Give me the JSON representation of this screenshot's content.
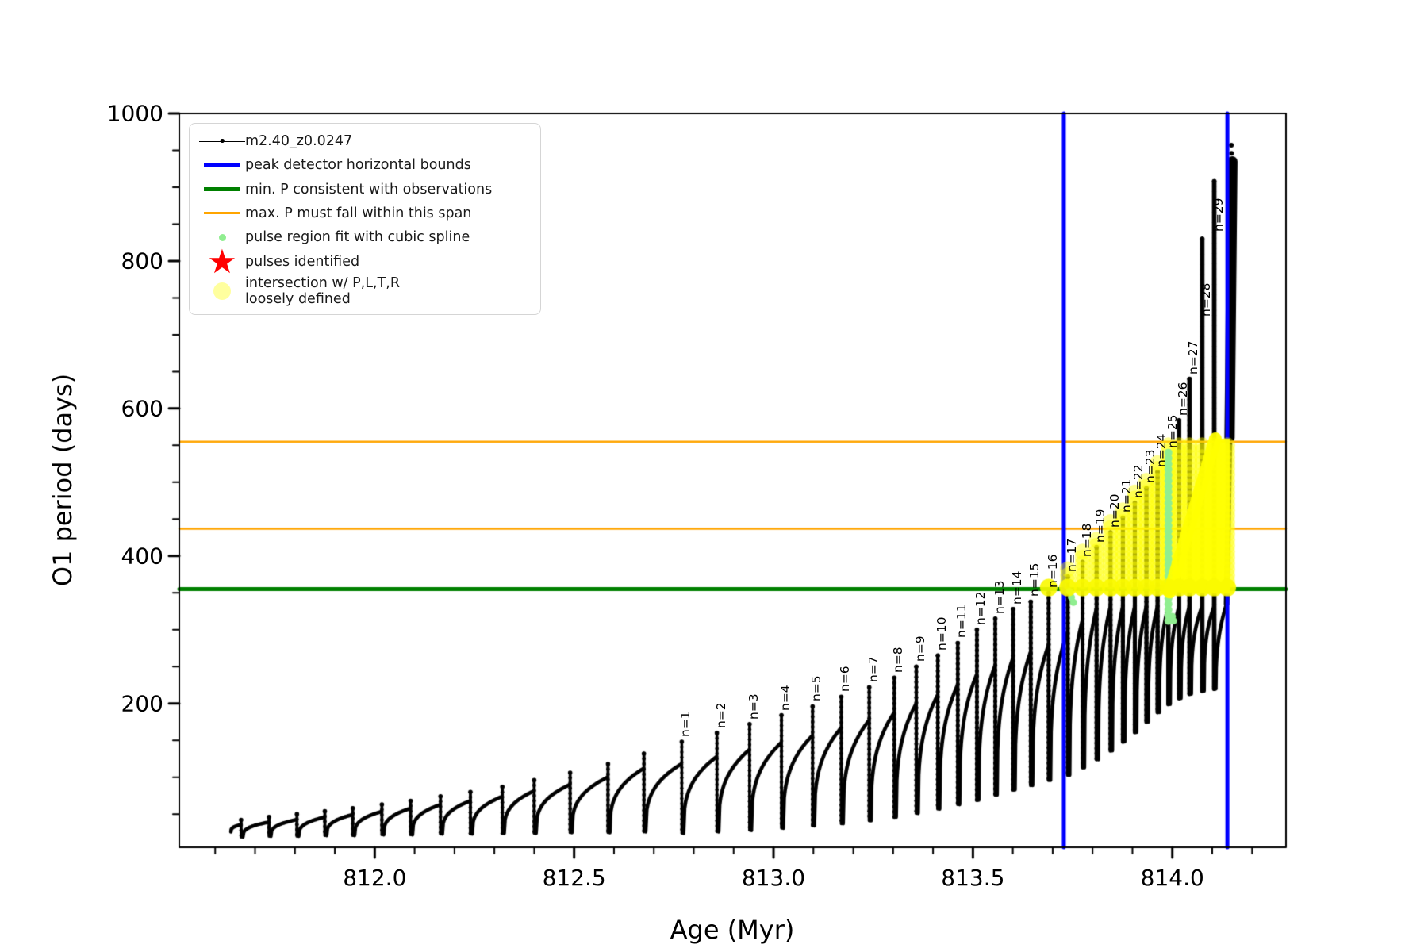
{
  "figure": {
    "type": "matplotlib-style scientific plot",
    "background": "#ffffff"
  },
  "legend": {
    "position": "upper-left",
    "items": [
      {
        "id": "track",
        "label": "m2.40_z0.0247",
        "marker": "line-with-dot",
        "color": "#000000"
      },
      {
        "id": "peak-bounds",
        "label": "peak detector horizontal bounds",
        "marker": "thick-line",
        "color": "#0000ff"
      },
      {
        "id": "min-p",
        "label": "min. P consistent with observations",
        "marker": "thick-line",
        "color": "#008000"
      },
      {
        "id": "max-p",
        "label": "max. P must fall within this span",
        "marker": "line",
        "color": "#ffa500"
      },
      {
        "id": "spline",
        "label": "pulse region fit with cubic spline",
        "marker": "small-dot",
        "color": "#90ee90"
      },
      {
        "id": "pulses",
        "label": "pulses identified",
        "marker": "star",
        "glyph": "★",
        "color": "#ff0000"
      },
      {
        "id": "intersection",
        "label": "intersection w/ P,L,T,R\nloosely defined",
        "marker": "big-dot",
        "color": "rgba(255,255,0,0.38)"
      }
    ]
  },
  "chart_data": {
    "type": "line",
    "title": "",
    "xlabel": "Age (Myr)",
    "ylabel": "O1 period (days)",
    "xlim": [
      811.51,
      814.285
    ],
    "ylim": [
      5,
      1000
    ],
    "xticks": [
      {
        "v": 812.0,
        "label": "812.0"
      },
      {
        "v": 812.5,
        "label": "812.5"
      },
      {
        "v": 813.0,
        "label": "813.0"
      },
      {
        "v": 813.5,
        "label": "813.5"
      },
      {
        "v": 814.0,
        "label": "814.0"
      }
    ],
    "yticks": [
      {
        "v": 200,
        "label": "200"
      },
      {
        "v": 400,
        "label": "400"
      },
      {
        "v": 600,
        "label": "600"
      },
      {
        "v": 800,
        "label": "800"
      },
      {
        "v": 1000,
        "label": "1000"
      }
    ],
    "minor_x_step": 0.1,
    "minor_y_step": 50,
    "grid": false,
    "colors": {
      "track": "#000000",
      "peak_bounds": "#0000ff",
      "min_p": "#008000",
      "max_p": "#ffa500",
      "spline": "#90ee90",
      "pulses_star": "#ff0000",
      "intersection": "#ffff00"
    },
    "hlines": [
      {
        "value": 355,
        "color": "#008000",
        "width": 5,
        "meaning": "min. P consistent with observations"
      },
      {
        "value": 437,
        "color": "#ffa500",
        "width": 2.5,
        "meaning": "max. P span lower edge"
      },
      {
        "value": 555,
        "color": "#ffa500",
        "width": 2.5,
        "meaning": "max. P span upper edge"
      }
    ],
    "vlines": [
      {
        "value": 813.728,
        "color": "#0000ff",
        "width": 5,
        "meaning": "peak detector left bound"
      },
      {
        "value": 814.138,
        "color": "#0000ff",
        "width": 5,
        "meaning": "peak detector right bound"
      }
    ],
    "track_start": {
      "age": 811.635,
      "value": 26
    },
    "pre_pulses": [
      {
        "age": 811.665,
        "peak": 42,
        "base": 19
      },
      {
        "age": 811.735,
        "peak": 46,
        "base": 20
      },
      {
        "age": 811.805,
        "peak": 50,
        "base": 20
      },
      {
        "age": 811.875,
        "peak": 54,
        "base": 21
      },
      {
        "age": 811.945,
        "peak": 58,
        "base": 21
      },
      {
        "age": 812.018,
        "peak": 63,
        "base": 22
      },
      {
        "age": 812.09,
        "peak": 68,
        "base": 22
      },
      {
        "age": 812.165,
        "peak": 74,
        "base": 23
      },
      {
        "age": 812.24,
        "peak": 80,
        "base": 23
      },
      {
        "age": 812.32,
        "peak": 87,
        "base": 24
      },
      {
        "age": 812.4,
        "peak": 96,
        "base": 24
      },
      {
        "age": 812.49,
        "peak": 106,
        "base": 25
      },
      {
        "age": 812.585,
        "peak": 118,
        "base": 25
      },
      {
        "age": 812.675,
        "peak": 132,
        "base": 26
      }
    ],
    "pulses": [
      {
        "n": 1,
        "label": "n=1",
        "age": 812.77,
        "peak": 148,
        "base": 24
      },
      {
        "n": 2,
        "label": "n=2",
        "age": 812.858,
        "peak": 160,
        "base": 26
      },
      {
        "n": 3,
        "label": "n=3",
        "age": 812.94,
        "peak": 172,
        "base": 28
      },
      {
        "n": 4,
        "label": "n=4",
        "age": 813.02,
        "peak": 184,
        "base": 31
      },
      {
        "n": 5,
        "label": "n=5",
        "age": 813.098,
        "peak": 196,
        "base": 34
      },
      {
        "n": 6,
        "label": "n=6",
        "age": 813.17,
        "peak": 209,
        "base": 37
      },
      {
        "n": 7,
        "label": "n=7",
        "age": 813.24,
        "peak": 222,
        "base": 41
      },
      {
        "n": 8,
        "label": "n=8",
        "age": 813.303,
        "peak": 235,
        "base": 46
      },
      {
        "n": 9,
        "label": "n=9",
        "age": 813.358,
        "peak": 250,
        "base": 51
      },
      {
        "n": 10,
        "label": "n=10",
        "age": 813.412,
        "peak": 265,
        "base": 57
      },
      {
        "n": 11,
        "label": "n=11",
        "age": 813.462,
        "peak": 282,
        "base": 63
      },
      {
        "n": 12,
        "label": "n=12",
        "age": 813.51,
        "peak": 300,
        "base": 69
      },
      {
        "n": 13,
        "label": "n=13",
        "age": 813.556,
        "peak": 315,
        "base": 76
      },
      {
        "n": 14,
        "label": "n=14",
        "age": 813.601,
        "peak": 328,
        "base": 83
      },
      {
        "n": 15,
        "label": "n=15",
        "age": 813.645,
        "peak": 338,
        "base": 89
      },
      {
        "n": 16,
        "label": "n=16",
        "age": 813.69,
        "peak": 350,
        "base": 96
      },
      {
        "n": 17,
        "label": "n=17",
        "age": 813.738,
        "peak": 372,
        "base": 103
      },
      {
        "n": 18,
        "label": "n=18",
        "age": 813.775,
        "peak": 392,
        "base": 113
      },
      {
        "n": 19,
        "label": "n=19",
        "age": 813.81,
        "peak": 412,
        "base": 124
      },
      {
        "n": 20,
        "label": "n=20",
        "age": 813.845,
        "peak": 432,
        "base": 136
      },
      {
        "n": 21,
        "label": "n=21",
        "age": 813.876,
        "peak": 452,
        "base": 148
      },
      {
        "n": 22,
        "label": "n=22",
        "age": 813.906,
        "peak": 472,
        "base": 161
      },
      {
        "n": 23,
        "label": "n=23",
        "age": 813.935,
        "peak": 492,
        "base": 175
      },
      {
        "n": 24,
        "label": "n=24",
        "age": 813.963,
        "peak": 514,
        "base": 188
      },
      {
        "n": 25,
        "label": "n=25",
        "age": 813.99,
        "peak": 540,
        "base": 199
      },
      {
        "n": 26,
        "label": "n=26",
        "age": 814.017,
        "peak": 584,
        "base": 207
      },
      {
        "n": 27,
        "label": "n=27",
        "age": 814.043,
        "peak": 640,
        "base": 213
      },
      {
        "n": 28,
        "label": "n=28",
        "age": 814.075,
        "peak": 830,
        "base": 217,
        "label_at": 718
      },
      {
        "n": 29,
        "label": "n=29",
        "age": 814.105,
        "peak": 908,
        "base": 220,
        "label_at": 833
      }
    ],
    "final_rise": {
      "arc_to": {
        "age": 814.136,
        "value": 335
      },
      "climb_mid": {
        "age": 814.144,
        "value": 575
      },
      "climb_to": {
        "age": 814.1505,
        "value": 935
      },
      "end_dots": [
        [
          814.148,
          957
        ],
        [
          814.1485,
          946
        ]
      ]
    },
    "spline_fit": {
      "age": 813.99,
      "from": 312,
      "to": 544,
      "dot_radius": 5
    },
    "spline_extra_dots": [
      [
        813.742,
        352
      ],
      [
        813.747,
        344
      ],
      [
        813.752,
        337
      ],
      [
        814.0,
        318
      ],
      [
        814.003,
        312
      ]
    ],
    "intersection_region": {
      "p_min": 355,
      "p_cap": 554,
      "columns": [
        {
          "age": 813.738,
          "top": 387
        },
        {
          "age": 813.775,
          "top": 407
        },
        {
          "age": 813.81,
          "top": 427
        },
        {
          "age": 813.845,
          "top": 447
        },
        {
          "age": 813.876,
          "top": 467
        },
        {
          "age": 813.906,
          "top": 487
        },
        {
          "age": 813.935,
          "top": 507
        },
        {
          "age": 813.963,
          "top": 529
        },
        {
          "age": 813.99,
          "top": 554
        },
        {
          "age": 814.017,
          "top": 554
        },
        {
          "age": 814.043,
          "top": 554
        },
        {
          "age": 814.075,
          "top": 554
        },
        {
          "age": 814.105,
          "top": 554
        },
        {
          "age": 814.138,
          "top": 554
        }
      ],
      "row_circle_ages": [
        813.69,
        813.738,
        813.775,
        813.81,
        813.845,
        813.876,
        813.906,
        813.935,
        813.963,
        813.99,
        814.017,
        814.043,
        814.075,
        814.105,
        814.138
      ],
      "bright_polygon": [
        [
          813.993,
          351
        ],
        [
          814.108,
          559
        ],
        [
          814.144,
          559
        ],
        [
          814.144,
          349
        ]
      ]
    }
  }
}
